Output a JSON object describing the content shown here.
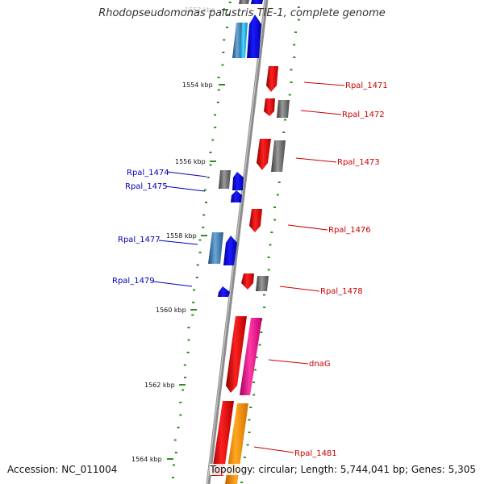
{
  "title": "Rhodopseudomonas palustris TIE-1, complete genome",
  "footer": {
    "accession": "Accession: NC_011004",
    "topology": "Topology: circular; Length: 5,744,041 bp; Genes: 5,305"
  },
  "colors": {
    "backbone": "#8c8c8c",
    "gc_dots": "#2f8f1f",
    "forward_label": "#cc0000",
    "reverse_label": "#0000bb"
  },
  "ticks": [
    {
      "label": "1552 kbp"
    },
    {
      "label": "1554 kbp"
    },
    {
      "label": "1556 kbp"
    },
    {
      "label": "1558 kbp"
    },
    {
      "label": "1560 kbp"
    },
    {
      "label": "1562 kbp"
    },
    {
      "label": "1564 kbp"
    }
  ],
  "gene_labels": {
    "forward": [
      "Rpal_1471",
      "Rpal_1472",
      "Rpal_1473",
      "Rpal_1476",
      "Rpal_1478",
      "dnaG",
      "Rpal_1481"
    ],
    "reverse": [
      "Rpal_1474",
      "Rpal_1475",
      "Rpal_1477",
      "Rpal_1479"
    ]
  }
}
